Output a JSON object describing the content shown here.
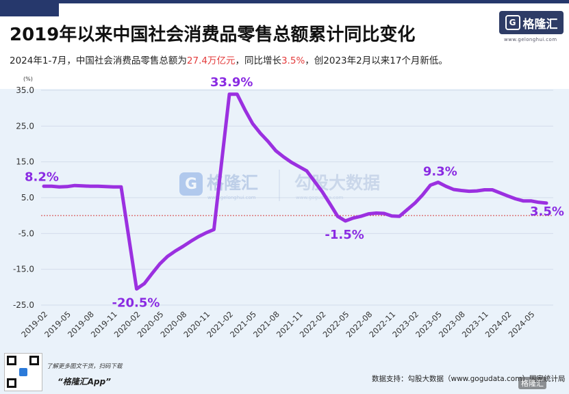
{
  "title": "2019年以来中国社会消费品零售总额累计同比变化",
  "subtitle": {
    "prefix": "2024年1-7月，中国社会消费品零售总额为",
    "total": "27.4万亿元",
    "middle": "，同比增长",
    "growth": "3.5%",
    "suffix": "，创2023年2月以来17个月新低。"
  },
  "logo": {
    "text": "格隆汇",
    "url": "www.gelonghui.com"
  },
  "watermark": {
    "left": "格隆汇",
    "left_url": "www.gelonghui.com",
    "right": "勾股大数据",
    "right_url": "www.gogudata.com"
  },
  "footer": {
    "promo_line1": "了解更多图文干货，扫码下载",
    "promo_line2": "“格隆汇App”",
    "source": "数据支持：勾股大数据（www.gogudata.com）国家统计局",
    "corner_watermark": "格隆汇"
  },
  "colors": {
    "line": "#9b30e0",
    "label": "#8a2be2",
    "zero_line": "#d63b3b",
    "grid": "#d3dceb"
  },
  "chart_data": {
    "type": "line",
    "title": "",
    "ylabel": "(%)",
    "ylim": [
      -25,
      35
    ],
    "yticks": [
      "35.0",
      "25.0",
      "15.0",
      "5.0",
      "-5.0",
      "-15.0",
      "-25.0"
    ],
    "xtick_labels": [
      "2019-02",
      "2019-05",
      "2019-08",
      "2019-11",
      "2020-02",
      "2020-05",
      "2020-08",
      "2020-11",
      "2021-02",
      "2021-05",
      "2021-08",
      "2021-11",
      "2022-02",
      "2022-05",
      "2022-08",
      "2022-11",
      "2023-02",
      "2023-05",
      "2023-08",
      "2023-11",
      "2024-02",
      "2024-05"
    ],
    "x": [
      "2019-02",
      "2019-03",
      "2019-04",
      "2019-05",
      "2019-06",
      "2019-07",
      "2019-08",
      "2019-09",
      "2019-10",
      "2019-11",
      "2019-12",
      "2020-02",
      "2020-03",
      "2020-04",
      "2020-05",
      "2020-06",
      "2020-07",
      "2020-08",
      "2020-09",
      "2020-10",
      "2020-11",
      "2020-12",
      "2021-02",
      "2021-03",
      "2021-04",
      "2021-05",
      "2021-06",
      "2021-07",
      "2021-08",
      "2021-09",
      "2021-10",
      "2021-11",
      "2021-12",
      "2022-02",
      "2022-03",
      "2022-04",
      "2022-05",
      "2022-06",
      "2022-07",
      "2022-08",
      "2022-09",
      "2022-10",
      "2022-11",
      "2022-12",
      "2023-02",
      "2023-03",
      "2023-04",
      "2023-05",
      "2023-06",
      "2023-07",
      "2023-08",
      "2023-09",
      "2023-10",
      "2023-11",
      "2023-12",
      "2024-02",
      "2024-03",
      "2024-04",
      "2024-05",
      "2024-06",
      "2024-07"
    ],
    "series": [
      {
        "name": "",
        "values": [
          8.2,
          8.2,
          8.0,
          8.1,
          8.4,
          8.3,
          8.2,
          8.2,
          8.1,
          8.0,
          8.0,
          -20.5,
          -19.0,
          -16.2,
          -13.5,
          -11.4,
          -9.9,
          -8.6,
          -7.2,
          -5.9,
          -4.8,
          -3.9,
          33.9,
          33.9,
          29.6,
          25.7,
          23.0,
          20.7,
          18.1,
          16.4,
          14.9,
          13.7,
          12.5,
          6.7,
          3.3,
          -0.2,
          -1.5,
          -0.7,
          -0.2,
          0.5,
          0.7,
          0.6,
          -0.1,
          -0.2,
          3.5,
          5.8,
          8.5,
          9.3,
          8.2,
          7.3,
          7.0,
          6.8,
          6.9,
          7.2,
          7.2,
          5.5,
          4.7,
          4.1,
          4.1,
          3.7,
          3.5
        ]
      }
    ],
    "annotations": [
      {
        "x": "2019-02",
        "y": 8.2,
        "text": "8.2%"
      },
      {
        "x": "2020-02",
        "y": -20.5,
        "text": "-20.5%"
      },
      {
        "x": "2021-02",
        "y": 33.9,
        "text": "33.9%"
      },
      {
        "x": "2022-05",
        "y": -1.5,
        "text": "-1.5%"
      },
      {
        "x": "2023-05",
        "y": 9.3,
        "text": "9.3%"
      },
      {
        "x": "2024-07",
        "y": 3.5,
        "text": "3.5%"
      }
    ],
    "grid": true,
    "reference_line": 0
  }
}
